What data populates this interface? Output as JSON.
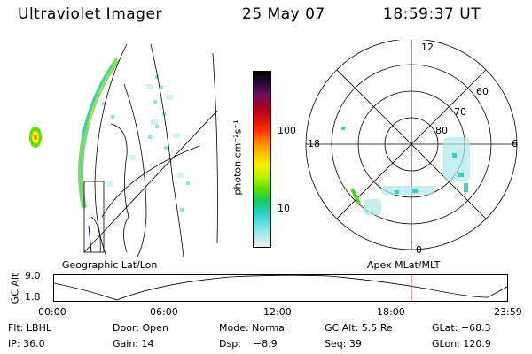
{
  "header": {
    "title": "Ultraviolet Imager",
    "date": "25 May 07",
    "time": "18:59:37 UT"
  },
  "colorbar": {
    "unit_label": "photon cm⁻²s⁻¹",
    "ticks": [
      "100",
      "10"
    ],
    "colors": [
      "#000000",
      "#2a0a3a",
      "#6a1060",
      "#a80020",
      "#d01010",
      "#ff3000",
      "#ff8000",
      "#ffc000",
      "#f8f000",
      "#b8f000",
      "#60e000",
      "#20c860",
      "#20d0c0",
      "#60e0e0",
      "#b0e8e8",
      "#e8f4f4"
    ]
  },
  "polar_plot": {
    "mlt_labels": {
      "top": "12",
      "left": "18",
      "right": "6",
      "bottom": "0"
    },
    "lat_labels": [
      "60",
      "70",
      "80"
    ]
  },
  "panel_labels": {
    "left": "Geographic Lat/Lon",
    "right": "Apex MLat/MLT"
  },
  "timeline": {
    "y_axis_label": "GC Alt",
    "y_ticks": [
      "9.0",
      "1.8"
    ],
    "x_ticks": [
      "00:00",
      "06:00",
      "12:00",
      "18:00",
      "23:59"
    ],
    "marker_color": "#c04040"
  },
  "status": {
    "filter": "Flt: LBHL",
    "door": "Door: Open",
    "mode": "Mode: Normal",
    "gc_alt": "GC Alt: 5.5 Re",
    "glat": "GLat: −68.3",
    "ip": "IP: 36.0",
    "gain": "Gain: 14",
    "dsp": "Dsp:    −8.9",
    "seq": "Seq: 39",
    "glon": "GLon: 120.9"
  }
}
